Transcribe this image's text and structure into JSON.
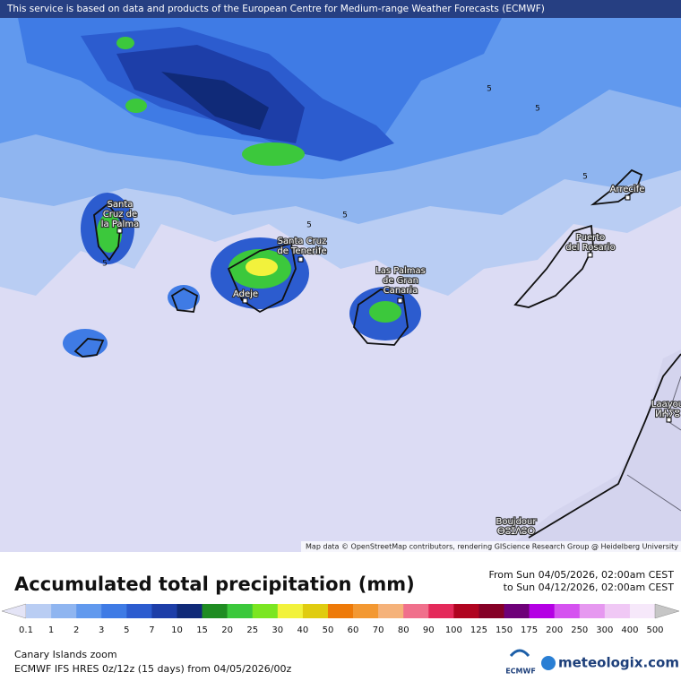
{
  "header": {
    "notice": "This service is based on data and products of the European Centre for Medium-range Weather Forecasts (ECMWF)"
  },
  "map": {
    "places": [
      {
        "lines": [
          "Santa",
          "Cruz de",
          "la Palma"
        ]
      },
      {
        "lines": [
          "Santa Cruz",
          "de Tenerife"
        ]
      },
      {
        "lines": [
          "Adeje"
        ]
      },
      {
        "lines": [
          "Las Palmas",
          "de Gran",
          "Canaria"
        ]
      },
      {
        "lines": [
          "Puerto",
          "del Rosario"
        ]
      },
      {
        "lines": [
          "Arrecife"
        ]
      },
      {
        "lines": [
          "Laayou",
          "ⵍⵄⵢⵓ"
        ]
      },
      {
        "lines": [
          "Boujdour",
          "ⴱⵓⵊⴷⵓⵔ"
        ]
      }
    ],
    "contour_labels": [
      "5",
      "5",
      "5",
      "5",
      "5",
      "5"
    ],
    "attribution": "Map data © OpenStreetMap contributors, rendering GIScience Research Group @ Heidelberg University"
  },
  "legend": {
    "title": "Accumulated total precipitation (mm)",
    "period_from": "From Sun 04/05/2026, 02:00am CEST",
    "period_to": "to Sun 04/12/2026, 02:00am CEST",
    "ticks": [
      "0.1",
      "1",
      "2",
      "3",
      "5",
      "7",
      "10",
      "15",
      "20",
      "25",
      "30",
      "40",
      "50",
      "60",
      "70",
      "80",
      "90",
      "100",
      "125",
      "150",
      "175",
      "200",
      "250",
      "300",
      "400",
      "500"
    ],
    "colors": [
      "#e4e4f6",
      "#b9cdf3",
      "#8fb5f0",
      "#6199ee",
      "#3f7be5",
      "#2c5ccf",
      "#1d3ea8",
      "#102a78",
      "#1f8c22",
      "#3cc83c",
      "#7be622",
      "#f2f23c",
      "#e0cc10",
      "#ee7a08",
      "#f39832",
      "#f5b27a",
      "#f0708c",
      "#e42a5a",
      "#b00420",
      "#850026",
      "#6e0078",
      "#b400e4",
      "#d552f0",
      "#e698f0",
      "#f0c8f5",
      "#f6e8fa",
      "#c6c6c6"
    ]
  },
  "footer": {
    "region": "Canary Islands zoom",
    "model": "ECMWF IFS HRES 0z/12z (15 days) from  04/05/2026/00z",
    "logo_ecmwf": "ECMWF",
    "logo_site": "meteologix.com"
  }
}
